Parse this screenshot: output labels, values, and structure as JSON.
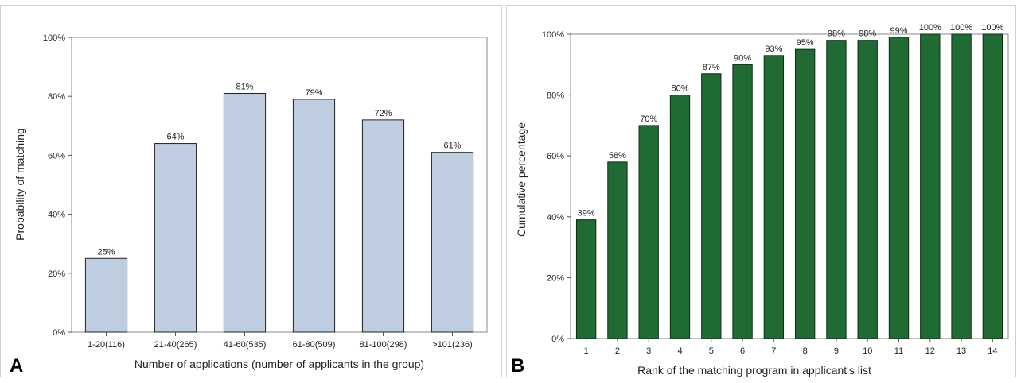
{
  "chart_data": [
    {
      "type": "bar",
      "panel_label": "A",
      "title": "",
      "xlabel": "Number of applications (number of applicants in the group)",
      "ylabel": "Probability of matching",
      "categories": [
        "1-20(116)",
        "21-40(265)",
        "41-60(535)",
        "61-80(509)",
        "81-100(298)",
        ">101(236)"
      ],
      "values": [
        25,
        64,
        81,
        79,
        72,
        61
      ],
      "data_labels": [
        "25%",
        "64%",
        "81%",
        "79%",
        "72%",
        "61%"
      ],
      "ylim": [
        0,
        100
      ],
      "yticks": [
        0,
        20,
        40,
        60,
        80,
        100
      ],
      "ytick_labels": [
        "0%",
        "20%",
        "40%",
        "60%",
        "80%",
        "100%"
      ],
      "grid": false,
      "bar_color": "#bfcde0",
      "bar_edge": "#222222"
    },
    {
      "type": "bar",
      "panel_label": "B",
      "title": "",
      "xlabel": "Rank of the matching program in applicant's list",
      "ylabel": "Cumulative percentage",
      "categories": [
        "1",
        "2",
        "3",
        "4",
        "5",
        "6",
        "7",
        "8",
        "9",
        "10",
        "11",
        "12",
        "13",
        "14"
      ],
      "values": [
        39,
        58,
        70,
        80,
        87,
        90,
        93,
        95,
        98,
        98,
        99,
        100,
        100,
        100
      ],
      "data_labels": [
        "39%",
        "58%",
        "70%",
        "80%",
        "87%",
        "90%",
        "93%",
        "95%",
        "98%",
        "98%",
        "99%",
        "100%",
        "100%",
        "100%"
      ],
      "ylim": [
        0,
        100
      ],
      "yticks": [
        0,
        20,
        40,
        60,
        80,
        100
      ],
      "ytick_labels": [
        "0%",
        "20%",
        "40%",
        "60%",
        "80%",
        "100%"
      ],
      "grid": false,
      "bar_color": "#1f6b33",
      "bar_edge": "#0e2e16"
    }
  ]
}
